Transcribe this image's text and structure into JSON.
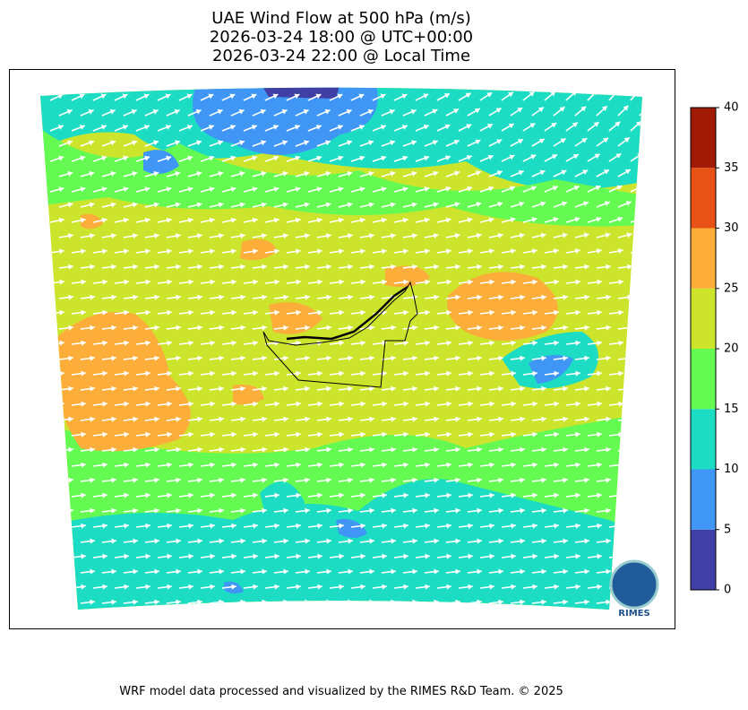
{
  "title": {
    "line1": "UAE Wind Flow at 500 hPa (m/s)",
    "line2": "2026-03-24 18:00 @ UTC+00:00",
    "line3": "2026-03-24 22:00 @ Local Time"
  },
  "colorbar": {
    "lim": [
      0,
      40
    ],
    "ticks": [
      0,
      5,
      10,
      15,
      20,
      25,
      30,
      35,
      40
    ],
    "colors": [
      "#3f3fa5",
      "#3f96f5",
      "#1ddcc4",
      "#65fa52",
      "#cce52c",
      "#fcad3a",
      "#e85216",
      "#a01a05"
    ]
  },
  "logo": "RIMES",
  "footer": "WRF model data processed and visualized by the RIMES R&D Team. © 2025"
}
